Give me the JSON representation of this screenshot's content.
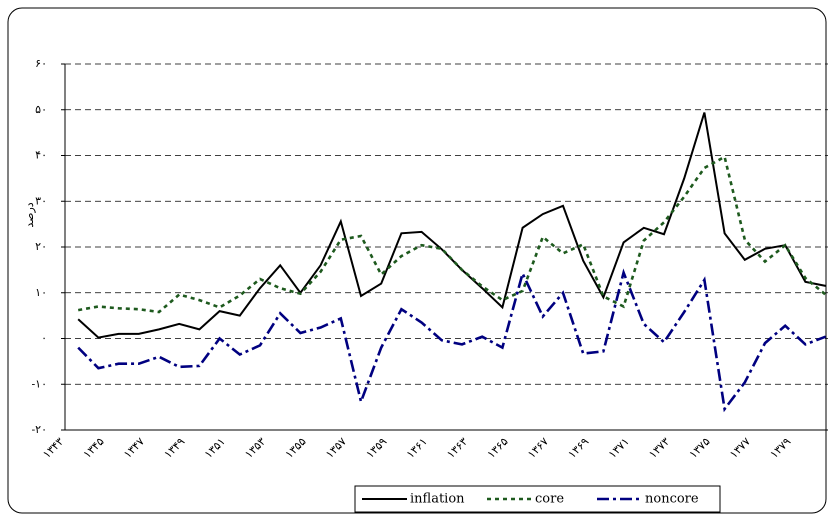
{
  "chart_data": {
    "type": "line",
    "ylabel": "درصد",
    "categories": [
      "۱۳۴۳",
      null,
      "۱۳۴۵",
      null,
      "۱۳۴۷",
      null,
      "۱۳۴۹",
      null,
      "۱۳۵۱",
      null,
      "۱۳۵۳",
      null,
      "۱۳۵۵",
      null,
      "۱۳۵۷",
      null,
      "۱۳۵۹",
      null,
      "۱۳۶۱",
      null,
      "۱۳۶۳",
      null,
      "۱۳۶۵",
      null,
      "۱۳۶۷",
      null,
      "۱۳۶۹",
      null,
      "۱۳۷۱",
      null,
      "۱۳۷۳",
      null,
      "۱۳۷۵",
      null,
      "۱۳۷۷",
      null,
      "۱۳۷۹",
      null,
      null
    ],
    "series": [
      {
        "name": "inflation",
        "color": "#000000",
        "dash": "none",
        "values": [
          null,
          4.2,
          0.2,
          1,
          1,
          2,
          3.2,
          2,
          6,
          5,
          11,
          16,
          10,
          16,
          25.6,
          9.3,
          12,
          23,
          23.3,
          19.5,
          15,
          11,
          6.8,
          24.2,
          27.2,
          29,
          17,
          9,
          21,
          24.2,
          22.8,
          35,
          49.4,
          23,
          17.2,
          19.6,
          20.4,
          12.4,
          11.5
        ]
      },
      {
        "name": "core",
        "color": "#1e5a1e",
        "dash": "4,4",
        "values": [
          null,
          6.2,
          7,
          6.6,
          6.4,
          5.8,
          9.6,
          8.4,
          6.8,
          9.4,
          13,
          11,
          9.8,
          14.6,
          21.6,
          22.4,
          14,
          18,
          20.4,
          19.6,
          15,
          11.4,
          8.4,
          10.4,
          22.2,
          18.6,
          20.6,
          9.2,
          7,
          21.4,
          25.4,
          31,
          37.3,
          39.7,
          21.6,
          16.8,
          20.4,
          13.2,
          9.6
        ]
      },
      {
        "name": "noncore",
        "color": "#000080",
        "dash": "12,4,3,4",
        "values": [
          null,
          -2,
          -6.5,
          -5.5,
          -5.5,
          -4,
          -6.2,
          -6,
          0,
          -3.5,
          -1.5,
          5.5,
          1.2,
          2.4,
          4.4,
          -13.8,
          -2,
          6.4,
          3.5,
          -0.4,
          -1.3,
          0.4,
          -2,
          14.2,
          4.8,
          10,
          -3.3,
          -2.8,
          14.4,
          3.2,
          -0.8,
          5.8,
          12.8,
          -15.4,
          -9.6,
          -1,
          2.8,
          -1.3,
          0.4
        ]
      }
    ],
    "ylim": [
      -20,
      60
    ],
    "yticks": [
      {
        "value": -20,
        "label": "-۲۰"
      },
      {
        "value": -10,
        "label": "-۱۰"
      },
      {
        "value": 0,
        "label": "۰"
      },
      {
        "value": 10,
        "label": "۱۰"
      },
      {
        "value": 20,
        "label": "۲۰"
      },
      {
        "value": 30,
        "label": "۳۰"
      },
      {
        "value": 40,
        "label": "۴۰"
      },
      {
        "value": 50,
        "label": "۵۰"
      },
      {
        "value": 60,
        "label": "۶۰"
      }
    ],
    "grid": true,
    "legend": "bottom"
  }
}
